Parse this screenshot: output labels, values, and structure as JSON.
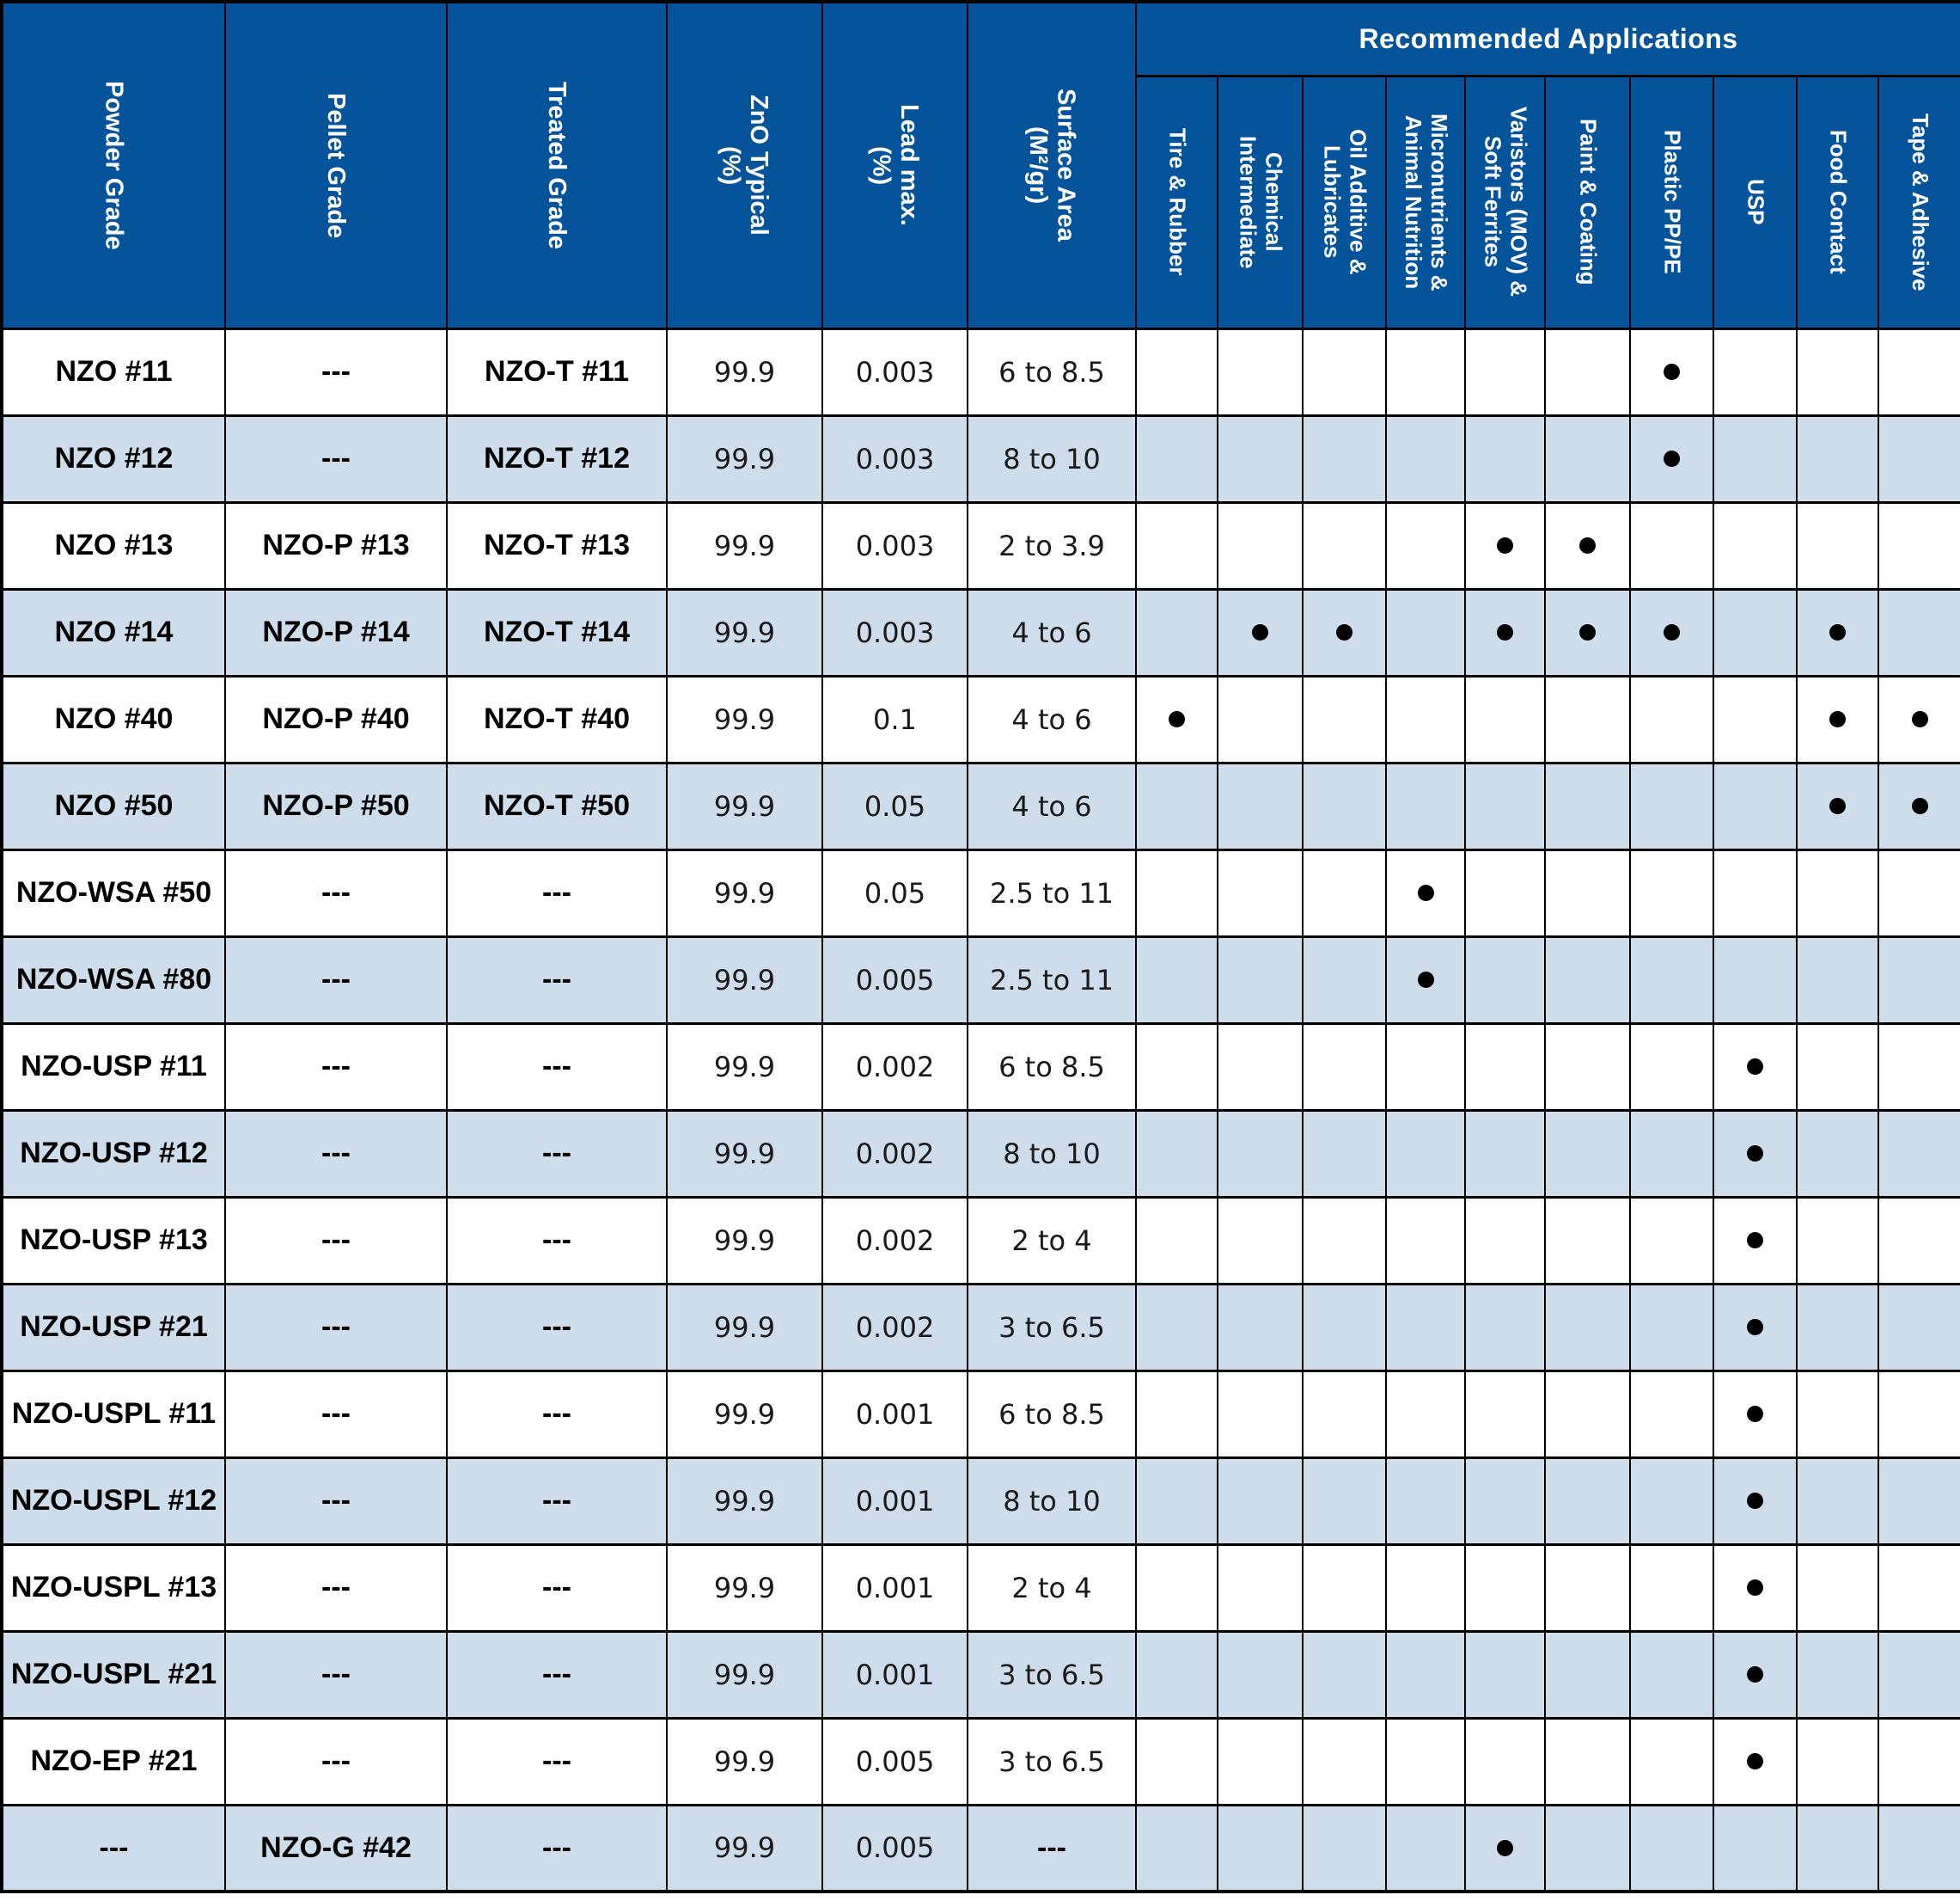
{
  "header": {
    "applications_title": "Recommended Applications",
    "main_columns": [
      "Powder Grade",
      "Pellet Grade",
      "Treated Grade",
      "ZnO Typical\n(%)",
      "Lead max.\n(%)",
      "Surface Area\n(M²/gr)"
    ],
    "application_columns": [
      "Tire & Rubber",
      "Chemical\nIntermediate",
      "Oil Additive &\nLubricates",
      "Micronutrients &\nAnimal Nutrition",
      "Varistors (MOV) &\nSoft Ferrites",
      "Paint & Coating",
      "Plastic PP/PE",
      "USP",
      "Food Contact",
      "Tape & Adhesive"
    ]
  },
  "rows": [
    {
      "powder": "NZO #11",
      "pellet": "---",
      "treated": "NZO-T #11",
      "zno": "99.9",
      "lead": "0.003",
      "surface": "6 to 8.5",
      "apps": [
        0,
        0,
        0,
        0,
        0,
        0,
        1,
        0,
        0,
        0
      ]
    },
    {
      "powder": "NZO #12",
      "pellet": "---",
      "treated": "NZO-T #12",
      "zno": "99.9",
      "lead": "0.003",
      "surface": "8 to 10",
      "apps": [
        0,
        0,
        0,
        0,
        0,
        0,
        1,
        0,
        0,
        0
      ]
    },
    {
      "powder": "NZO #13",
      "pellet": "NZO-P #13",
      "treated": "NZO-T #13",
      "zno": "99.9",
      "lead": "0.003",
      "surface": "2 to 3.9",
      "apps": [
        0,
        0,
        0,
        0,
        1,
        1,
        0,
        0,
        0,
        0
      ]
    },
    {
      "powder": "NZO #14",
      "pellet": "NZO-P #14",
      "treated": "NZO-T #14",
      "zno": "99.9",
      "lead": "0.003",
      "surface": "4 to 6",
      "apps": [
        0,
        1,
        1,
        0,
        1,
        1,
        1,
        0,
        1,
        0
      ]
    },
    {
      "powder": "NZO #40",
      "pellet": "NZO-P #40",
      "treated": "NZO-T #40",
      "zno": "99.9",
      "lead": "0.1",
      "surface": "4 to 6",
      "apps": [
        1,
        0,
        0,
        0,
        0,
        0,
        0,
        0,
        1,
        1
      ]
    },
    {
      "powder": "NZO #50",
      "pellet": "NZO-P #50",
      "treated": "NZO-T #50",
      "zno": "99.9",
      "lead": "0.05",
      "surface": "4 to 6",
      "apps": [
        0,
        0,
        0,
        0,
        0,
        0,
        0,
        0,
        1,
        1
      ]
    },
    {
      "powder": "NZO-WSA #50",
      "pellet": "---",
      "treated": "---",
      "zno": "99.9",
      "lead": "0.05",
      "surface": "2.5 to 11",
      "apps": [
        0,
        0,
        0,
        1,
        0,
        0,
        0,
        0,
        0,
        0
      ]
    },
    {
      "powder": "NZO-WSA #80",
      "pellet": "---",
      "treated": "---",
      "zno": "99.9",
      "lead": "0.005",
      "surface": "2.5 to 11",
      "apps": [
        0,
        0,
        0,
        1,
        0,
        0,
        0,
        0,
        0,
        0
      ]
    },
    {
      "powder": "NZO-USP #11",
      "pellet": "---",
      "treated": "---",
      "zno": "99.9",
      "lead": "0.002",
      "surface": "6 to 8.5",
      "apps": [
        0,
        0,
        0,
        0,
        0,
        0,
        0,
        1,
        0,
        0
      ]
    },
    {
      "powder": "NZO-USP #12",
      "pellet": "---",
      "treated": "---",
      "zno": "99.9",
      "lead": "0.002",
      "surface": "8 to 10",
      "apps": [
        0,
        0,
        0,
        0,
        0,
        0,
        0,
        1,
        0,
        0
      ]
    },
    {
      "powder": "NZO-USP #13",
      "pellet": "---",
      "treated": "---",
      "zno": "99.9",
      "lead": "0.002",
      "surface": "2 to 4",
      "apps": [
        0,
        0,
        0,
        0,
        0,
        0,
        0,
        1,
        0,
        0
      ]
    },
    {
      "powder": "NZO-USP #21",
      "pellet": "---",
      "treated": "---",
      "zno": "99.9",
      "lead": "0.002",
      "surface": "3 to 6.5",
      "apps": [
        0,
        0,
        0,
        0,
        0,
        0,
        0,
        1,
        0,
        0
      ]
    },
    {
      "powder": "NZO-USPL #11",
      "pellet": "---",
      "treated": "---",
      "zno": "99.9",
      "lead": "0.001",
      "surface": "6 to 8.5",
      "apps": [
        0,
        0,
        0,
        0,
        0,
        0,
        0,
        1,
        0,
        0
      ]
    },
    {
      "powder": "NZO-USPL #12",
      "pellet": "---",
      "treated": "---",
      "zno": "99.9",
      "lead": "0.001",
      "surface": "8 to 10",
      "apps": [
        0,
        0,
        0,
        0,
        0,
        0,
        0,
        1,
        0,
        0
      ]
    },
    {
      "powder": "NZO-USPL #13",
      "pellet": "---",
      "treated": "---",
      "zno": "99.9",
      "lead": "0.001",
      "surface": "2 to 4",
      "apps": [
        0,
        0,
        0,
        0,
        0,
        0,
        0,
        1,
        0,
        0
      ]
    },
    {
      "powder": "NZO-USPL #21",
      "pellet": "---",
      "treated": "---",
      "zno": "99.9",
      "lead": "0.001",
      "surface": "3 to 6.5",
      "apps": [
        0,
        0,
        0,
        0,
        0,
        0,
        0,
        1,
        0,
        0
      ]
    },
    {
      "powder": "NZO-EP #21",
      "pellet": "---",
      "treated": "---",
      "zno": "99.9",
      "lead": "0.005",
      "surface": "3 to 6.5",
      "apps": [
        0,
        0,
        0,
        0,
        0,
        0,
        0,
        1,
        0,
        0
      ]
    },
    {
      "powder": "---",
      "pellet": "NZO-G #42",
      "treated": "---",
      "zno": "99.9",
      "lead": "0.005",
      "surface": "---",
      "apps": [
        0,
        0,
        0,
        0,
        1,
        0,
        0,
        0,
        0,
        0
      ]
    }
  ],
  "dot_symbol": "●",
  "colors": {
    "header_bg": "#05549b",
    "header_text": "#ffffff",
    "row_bg": "#ffffff",
    "row_alt_bg": "#cdddec",
    "border": "#000000",
    "dot": "#000000"
  }
}
